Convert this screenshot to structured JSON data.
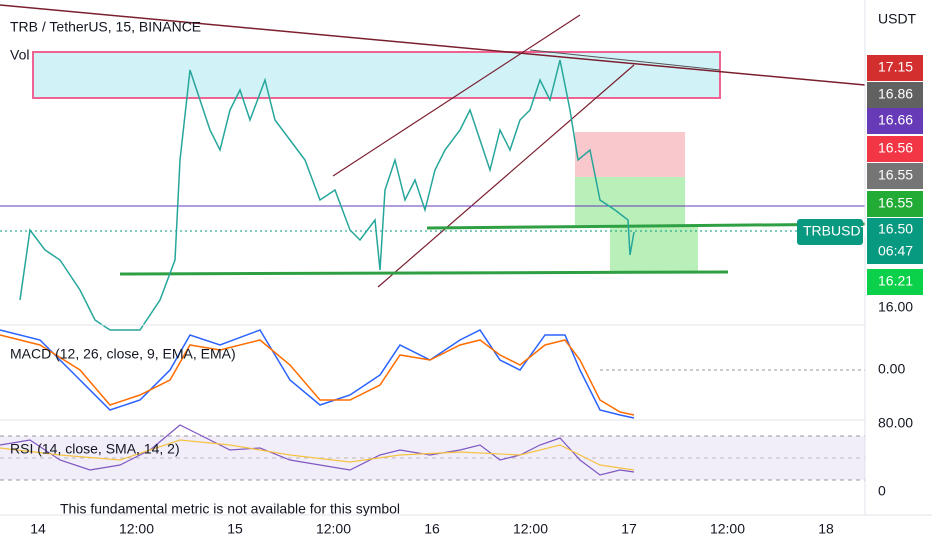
{
  "header": {
    "title": "TRB / TetherUS, 15, BINANCE",
    "vol": "Vol"
  },
  "price_axis": {
    "unit": "USDT",
    "bottom_label": "16.00"
  },
  "price_tags": [
    {
      "label": "17.15",
      "color": "#d32f2f"
    },
    {
      "label": "16.86",
      "color": "#616161"
    },
    {
      "label": "16.66",
      "color": "#673ab7"
    },
    {
      "label": "16.56",
      "color": "#f23645"
    },
    {
      "label": "16.55",
      "color": "#757575"
    },
    {
      "label": "16.55",
      "color": "#22ab35"
    },
    {
      "label": "16.21",
      "color": "#0bd14a"
    }
  ],
  "symbol_tag": {
    "name": "TRBUSDT",
    "price": "16.50",
    "countdown": "06:47",
    "color": "#089981"
  },
  "macd": {
    "title": "MACD (12, 26, close, 9, EMA, EMA)",
    "zero_label": "0.00"
  },
  "rsi": {
    "title": "RSI (14, close, SMA, 14, 2)",
    "top_label": "80.00",
    "bottom_label": "0"
  },
  "notice": "This fundamental metric is not available for this symbol",
  "time_axis": [
    "14",
    "12:00",
    "15",
    "12:00",
    "16",
    "12:00",
    "17",
    "12:00",
    "18"
  ]
}
